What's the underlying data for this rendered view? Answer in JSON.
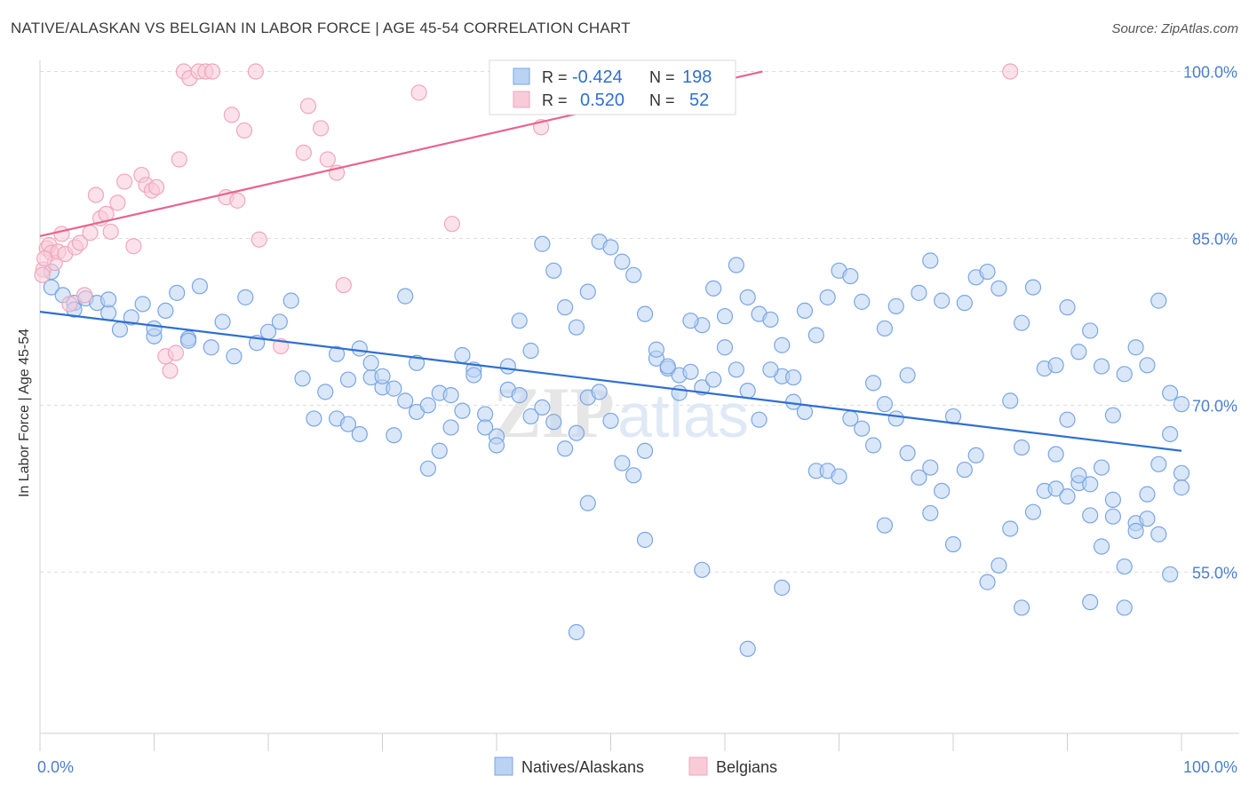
{
  "title": "NATIVE/ALASKAN VS BELGIAN IN LABOR FORCE | AGE 45-54 CORRELATION CHART",
  "source": "Source: ZipAtlas.com",
  "watermark": {
    "zip": "ZIP",
    "atlas": "atlas"
  },
  "chart_data": {
    "type": "scatter",
    "title": "NATIVE/ALASKAN VS BELGIAN IN LABOR FORCE | AGE 45-54 CORRELATION CHART",
    "xlabel": "",
    "ylabel": "In Labor Force | Age 45-54",
    "xlim": [
      0,
      100
    ],
    "ylim": [
      40.5,
      101
    ],
    "x_tick_labels": [
      "0.0%",
      "100.0%"
    ],
    "y_ticks": [
      55,
      70,
      85,
      100
    ],
    "y_tick_labels": [
      "55.0%",
      "70.0%",
      "85.0%",
      "100.0%"
    ],
    "grid": true,
    "legend_placement": "bottom-center",
    "stats_box": [
      {
        "r_label": "R =",
        "r_value": "-0.424",
        "n_label": "N =",
        "n_value": "198"
      },
      {
        "r_label": "R =",
        "r_value": "0.520",
        "n_label": "N =",
        "n_value": "52"
      }
    ],
    "series": [
      {
        "name": "Natives/Alaskans",
        "color": "#7aa6e6",
        "fill": "#bad3f3",
        "line_color": "#2f6fd1",
        "trend": {
          "x": [
            0,
            100
          ],
          "y": [
            78.4,
            65.9
          ]
        },
        "points": [
          [
            1,
            80.6
          ],
          [
            1,
            82
          ],
          [
            2,
            79.9
          ],
          [
            3,
            79.2
          ],
          [
            3,
            78.6
          ],
          [
            4,
            79.6
          ],
          [
            5,
            79.2
          ],
          [
            6,
            78.3
          ],
          [
            6,
            79.5
          ],
          [
            7,
            76.8
          ],
          [
            8,
            77.9
          ],
          [
            9,
            79.1
          ],
          [
            10,
            76.2
          ],
          [
            10,
            76.9
          ],
          [
            11,
            78.5
          ],
          [
            12,
            80.1
          ],
          [
            13,
            76
          ],
          [
            13,
            75.8
          ],
          [
            14,
            80.7
          ],
          [
            15,
            75.2
          ],
          [
            16,
            77.5
          ],
          [
            17,
            74.4
          ],
          [
            18,
            79.7
          ],
          [
            19,
            75.6
          ],
          [
            20,
            76.6
          ],
          [
            21,
            77.5
          ],
          [
            22,
            79.4
          ],
          [
            23,
            72.4
          ],
          [
            24,
            68.8
          ],
          [
            25,
            71.2
          ],
          [
            26,
            68.8
          ],
          [
            27,
            68.3
          ],
          [
            28,
            67.4
          ],
          [
            29,
            72.5
          ],
          [
            30,
            71.6
          ],
          [
            31,
            67.3
          ],
          [
            32,
            79.8
          ],
          [
            33,
            69.4
          ],
          [
            34,
            70
          ],
          [
            35,
            71.1
          ],
          [
            36,
            68
          ],
          [
            37,
            74.5
          ],
          [
            38,
            73.2
          ],
          [
            39,
            69.2
          ],
          [
            40,
            67.2
          ],
          [
            41,
            71.4
          ],
          [
            42,
            70.9
          ],
          [
            43,
            69
          ],
          [
            44,
            69.8
          ],
          [
            45,
            68.5
          ],
          [
            46,
            66.1
          ],
          [
            47,
            67.5
          ],
          [
            48,
            70.7
          ],
          [
            49,
            71.2
          ],
          [
            50,
            68.6
          ],
          [
            51,
            64.8
          ],
          [
            52,
            63.7
          ],
          [
            53,
            65.9
          ],
          [
            54,
            74.2
          ],
          [
            55,
            73.3
          ],
          [
            56,
            72.7
          ],
          [
            57,
            73
          ],
          [
            58,
            77.2
          ],
          [
            59,
            80.5
          ],
          [
            60,
            78
          ],
          [
            61,
            82.6
          ],
          [
            62,
            79.7
          ],
          [
            63,
            78.2
          ],
          [
            64,
            77.7
          ],
          [
            65,
            72.6
          ],
          [
            66,
            70.3
          ],
          [
            67,
            69.4
          ],
          [
            68,
            64.1
          ],
          [
            69,
            64.1
          ],
          [
            70,
            63.6
          ],
          [
            71,
            68.8
          ],
          [
            72,
            67.9
          ],
          [
            73,
            66.4
          ],
          [
            74,
            70.1
          ],
          [
            75,
            68.8
          ],
          [
            76,
            65.7
          ],
          [
            77,
            63.5
          ],
          [
            78,
            60.3
          ],
          [
            79,
            62.3
          ],
          [
            80,
            57.5
          ],
          [
            81,
            64.2
          ],
          [
            82,
            65.5
          ],
          [
            83,
            54.1
          ],
          [
            84,
            55.6
          ],
          [
            85,
            58.9
          ],
          [
            86,
            66.2
          ],
          [
            87,
            60.4
          ],
          [
            88,
            62.3
          ],
          [
            89,
            62.5
          ],
          [
            90,
            61.8
          ],
          [
            91,
            63
          ],
          [
            92,
            60.1
          ],
          [
            93,
            57.3
          ],
          [
            94,
            60
          ],
          [
            95,
            55.5
          ],
          [
            96,
            59.4
          ],
          [
            97,
            62
          ],
          [
            98,
            64.7
          ],
          [
            99,
            67.4
          ],
          [
            100,
            63.9
          ],
          [
            44,
            84.5
          ],
          [
            45,
            82.1
          ],
          [
            46,
            78.8
          ],
          [
            47,
            77
          ],
          [
            48,
            80.2
          ],
          [
            49,
            84.7
          ],
          [
            50,
            84.2
          ],
          [
            51,
            82.9
          ],
          [
            52,
            81.7
          ],
          [
            53,
            78.2
          ],
          [
            54,
            75
          ],
          [
            55,
            73.5
          ],
          [
            56,
            71.1
          ],
          [
            57,
            77.6
          ],
          [
            58,
            71.6
          ],
          [
            59,
            72.3
          ],
          [
            60,
            75.2
          ],
          [
            61,
            73.2
          ],
          [
            62,
            71.3
          ],
          [
            63,
            68.7
          ],
          [
            64,
            73.2
          ],
          [
            65,
            75.4
          ],
          [
            66,
            72.5
          ],
          [
            67,
            78.5
          ],
          [
            68,
            76.3
          ],
          [
            69,
            79.7
          ],
          [
            70,
            82.1
          ],
          [
            71,
            81.6
          ],
          [
            72,
            79.3
          ],
          [
            73,
            72
          ],
          [
            74,
            76.9
          ],
          [
            75,
            78.9
          ],
          [
            76,
            72.7
          ],
          [
            77,
            80.1
          ],
          [
            78,
            83
          ],
          [
            79,
            79.4
          ],
          [
            80,
            69
          ],
          [
            81,
            79.2
          ],
          [
            82,
            81.5
          ],
          [
            83,
            82
          ],
          [
            84,
            80.5
          ],
          [
            85,
            70.4
          ],
          [
            86,
            77.4
          ],
          [
            87,
            80.6
          ],
          [
            88,
            73.3
          ],
          [
            89,
            73.6
          ],
          [
            90,
            78.8
          ],
          [
            91,
            74.8
          ],
          [
            92,
            76.7
          ],
          [
            93,
            73.5
          ],
          [
            94,
            69.1
          ],
          [
            95,
            72.8
          ],
          [
            96,
            75.2
          ],
          [
            97,
            73.6
          ],
          [
            98,
            79.4
          ],
          [
            99,
            71.1
          ],
          [
            100,
            70.1
          ],
          [
            26,
            74.6
          ],
          [
            27,
            72.3
          ],
          [
            28,
            75.1
          ],
          [
            29,
            73.8
          ],
          [
            30,
            72.6
          ],
          [
            31,
            71.5
          ],
          [
            32,
            70.4
          ],
          [
            33,
            73.8
          ],
          [
            34,
            64.3
          ],
          [
            35,
            65.9
          ],
          [
            36,
            70.9
          ],
          [
            37,
            69.5
          ],
          [
            38,
            72.7
          ],
          [
            39,
            68
          ],
          [
            40,
            66.4
          ],
          [
            41,
            73.5
          ],
          [
            42,
            77.6
          ],
          [
            43,
            74.9
          ],
          [
            89,
            65.6
          ],
          [
            90,
            68.7
          ],
          [
            91,
            63.7
          ],
          [
            92,
            62.9
          ],
          [
            93,
            64.4
          ],
          [
            94,
            61.5
          ],
          [
            95,
            51.8
          ],
          [
            96,
            58.7
          ],
          [
            97,
            59.8
          ],
          [
            98,
            58.4
          ],
          [
            99,
            54.8
          ],
          [
            100,
            62.6
          ],
          [
            47,
            49.6
          ],
          [
            62,
            48.1
          ],
          [
            86,
            51.8
          ],
          [
            92,
            52.3
          ],
          [
            74,
            59.2
          ],
          [
            78,
            64.4
          ],
          [
            65,
            53.6
          ],
          [
            58,
            55.2
          ],
          [
            48,
            61.2
          ],
          [
            53,
            57.9
          ]
        ]
      },
      {
        "name": "Belgians",
        "color": "#f1a6bd",
        "fill": "#f8cbd9",
        "line_color": "#e8648e",
        "trend": {
          "x": [
            0,
            63.3
          ],
          "y": [
            85.2,
            100
          ]
        },
        "points": [
          [
            0.3,
            82.2
          ],
          [
            0.6,
            84.1
          ],
          [
            0.8,
            84.4
          ],
          [
            1,
            83.7
          ],
          [
            1.3,
            82.8
          ],
          [
            1.6,
            83.8
          ],
          [
            1.9,
            85.4
          ],
          [
            2.2,
            83.6
          ],
          [
            2.6,
            79.1
          ],
          [
            3.1,
            84.2
          ],
          [
            3.5,
            84.6
          ],
          [
            3.9,
            79.9
          ],
          [
            4.4,
            85.5
          ],
          [
            4.9,
            88.9
          ],
          [
            5.3,
            86.8
          ],
          [
            5.8,
            87.2
          ],
          [
            6.2,
            85.6
          ],
          [
            6.8,
            88.2
          ],
          [
            7.4,
            90.1
          ],
          [
            8.2,
            84.3
          ],
          [
            8.9,
            90.7
          ],
          [
            9.3,
            89.8
          ],
          [
            9.8,
            89.3
          ],
          [
            10.2,
            89.6
          ],
          [
            11,
            74.4
          ],
          [
            11.4,
            73.1
          ],
          [
            11.9,
            74.7
          ],
          [
            12.2,
            92.1
          ],
          [
            12.6,
            100
          ],
          [
            13.1,
            99.4
          ],
          [
            13.9,
            100
          ],
          [
            14.5,
            100
          ],
          [
            15.1,
            100
          ],
          [
            16.3,
            88.7
          ],
          [
            16.8,
            96.1
          ],
          [
            17.3,
            88.4
          ],
          [
            17.9,
            94.7
          ],
          [
            18.9,
            100
          ],
          [
            19.2,
            84.9
          ],
          [
            21.1,
            75.3
          ],
          [
            23.1,
            92.7
          ],
          [
            23.5,
            96.9
          ],
          [
            24.6,
            94.9
          ],
          [
            25.2,
            92.1
          ],
          [
            26,
            90.9
          ],
          [
            26.6,
            80.8
          ],
          [
            33.2,
            98.1
          ],
          [
            36.1,
            86.3
          ],
          [
            43.9,
            95
          ],
          [
            85,
            100
          ],
          [
            0.2,
            81.7
          ],
          [
            0.4,
            83.2
          ]
        ]
      }
    ]
  },
  "legend": [
    {
      "label": "Natives/Alaskans",
      "color": "#bad3f3",
      "border": "#7aa6e6"
    },
    {
      "label": "Belgians",
      "color": "#f8cbd9",
      "border": "#f1a6bd"
    }
  ]
}
